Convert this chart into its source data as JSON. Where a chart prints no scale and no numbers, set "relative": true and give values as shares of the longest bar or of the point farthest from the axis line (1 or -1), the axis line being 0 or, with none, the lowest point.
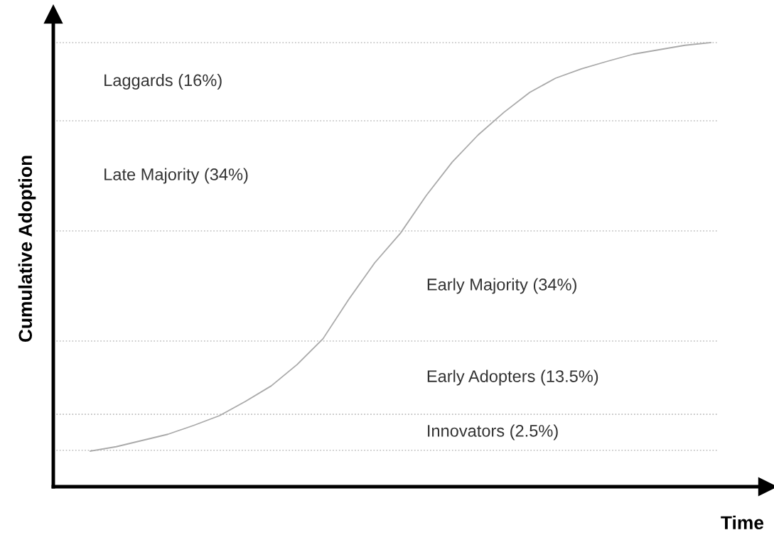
{
  "chart_data": {
    "type": "line",
    "xlabel": "Time",
    "ylabel": "Cumulative Adoption",
    "relative": true,
    "categories": [
      null,
      null,
      null,
      null,
      null,
      null,
      null,
      null,
      null,
      null,
      null,
      null,
      null,
      null,
      null,
      null,
      null,
      null,
      null,
      null,
      null,
      null,
      null,
      null,
      null
    ],
    "series": [
      {
        "color": "#aaaaaa",
        "values": [
          0.08,
          0.09,
          0.104,
          0.118,
          0.138,
          0.16,
          0.192,
          0.227,
          0.275,
          0.333,
          0.422,
          0.504,
          0.571,
          0.656,
          0.731,
          0.792,
          0.843,
          0.888,
          0.92,
          0.941,
          0.958,
          0.974,
          0.984,
          0.994,
          1.0
        ]
      }
    ],
    "ref_lines": [
      {
        "axis": "y",
        "value": 0.082,
        "color": "#bbbbbb",
        "line_style": "dotted"
      },
      {
        "axis": "y",
        "value": 0.163,
        "color": "#bbbbbb",
        "line_style": "dotted"
      },
      {
        "axis": "y",
        "value": 0.328,
        "color": "#bbbbbb",
        "line_style": "dotted"
      },
      {
        "axis": "y",
        "value": 0.576,
        "color": "#bbbbbb",
        "line_style": "dotted"
      },
      {
        "axis": "y",
        "value": 0.824,
        "color": "#bbbbbb",
        "line_style": "dotted"
      },
      {
        "axis": "y",
        "value": 1.0,
        "color": "#bbbbbb",
        "line_style": "dotted"
      }
    ],
    "annotations": [
      "Innovators (2.5%)",
      "Early Adopters (13.5%)",
      "Early Majority (34%)",
      "Late Majority (34%)",
      "Laggards (16%)"
    ]
  }
}
